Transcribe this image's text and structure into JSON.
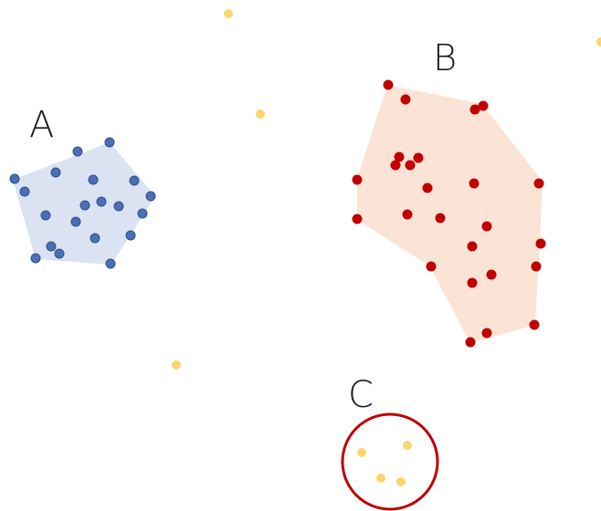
{
  "labels": {
    "a": "A",
    "b": "B",
    "c": "C"
  },
  "colors": {
    "cluster_a_fill": "#dbe3f2",
    "cluster_a_point": "#4a6fb5",
    "cluster_a_point_stroke": "#2f4f8f",
    "cluster_b_fill": "#fbe3d6",
    "cluster_b_point": "#c00000",
    "noise_point": "#fcd56b",
    "cluster_c_outline": "#c00000"
  }
}
